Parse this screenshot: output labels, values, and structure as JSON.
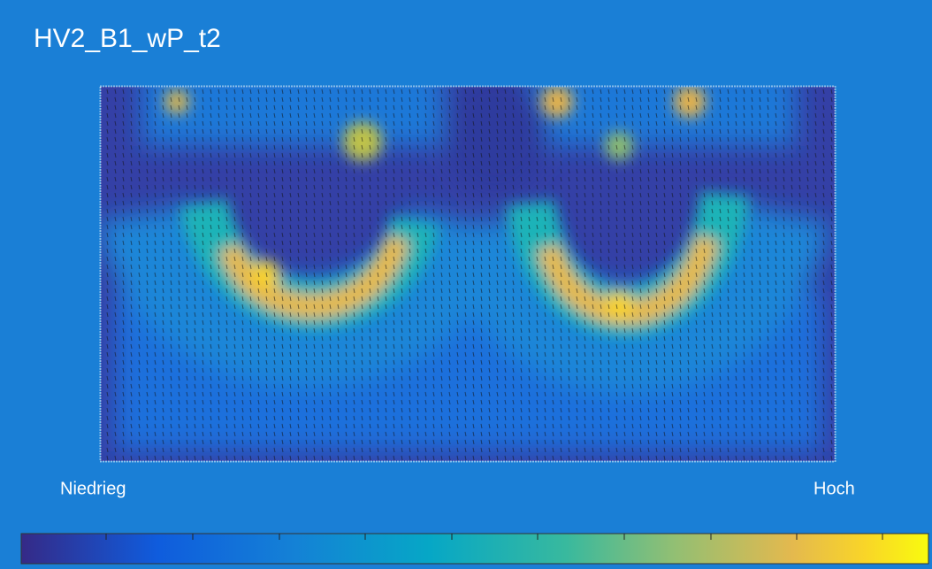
{
  "title": "HV2_B1_wP_t2",
  "colorbar": {
    "low_label": "Niedrieg",
    "high_label": "Hoch"
  }
}
